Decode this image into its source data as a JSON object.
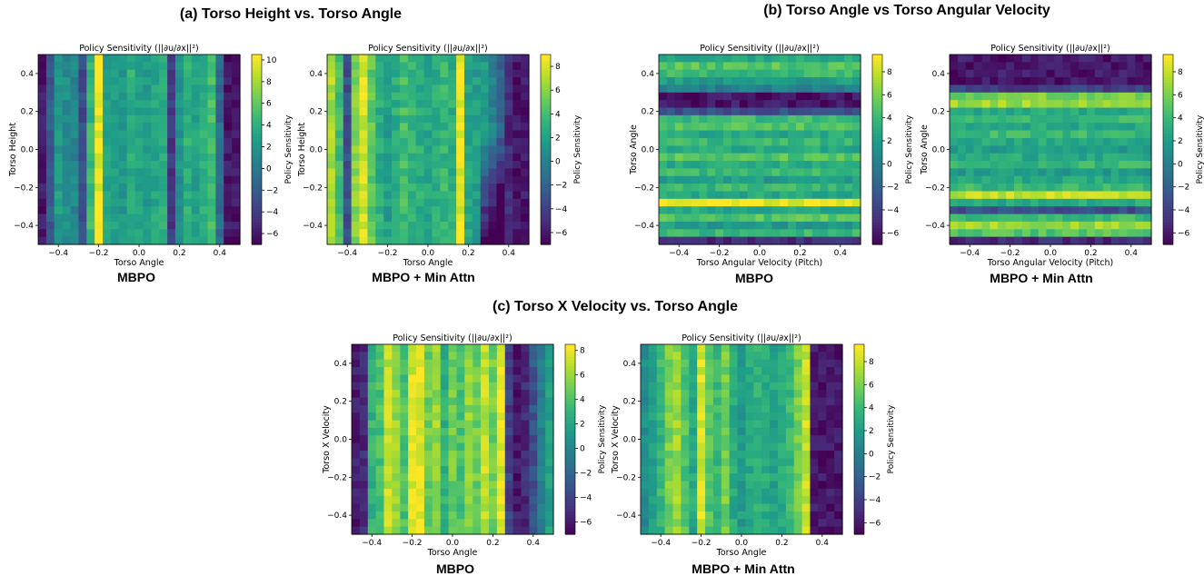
{
  "sections": [
    {
      "id": "a",
      "title": "(a) Torso Height vs. Torso Angle"
    },
    {
      "id": "b",
      "title": "(b) Torso Angle vs Torso Angular Velocity"
    },
    {
      "id": "c",
      "title": "(c) Torso X Velocity vs. Torso Angle"
    }
  ],
  "panel_labels": [
    "MBPO",
    "MBPO + Min Attn",
    "MBPO",
    "MBPO + Min Attn",
    "MBPO",
    "MBPO + Min Attn"
  ],
  "colors": {
    "viridis": [
      "#440154",
      "#482878",
      "#3e4989",
      "#31688e",
      "#26828e",
      "#1f9e89",
      "#35b779",
      "#6ece58",
      "#b5de2b",
      "#fde725"
    ]
  },
  "chart_data": [
    {
      "type": "heatmap",
      "title": "Policy Sensitivity (||∂u/∂x||²)",
      "xlabel": "Torso Angle",
      "ylabel": "Torso Height",
      "colorbar_label": "Policy Sensitivity",
      "xlim": [
        -0.5,
        0.5
      ],
      "ylim": [
        -0.5,
        0.5
      ],
      "xticks": [
        -0.4,
        -0.2,
        0.0,
        0.2,
        0.4
      ],
      "xtick_labels": [
        "−0.4",
        "−0.2",
        "0.0",
        "0.2",
        "0.4"
      ],
      "yticks": [
        -0.4,
        -0.2,
        0.0,
        0.2,
        0.4
      ],
      "ytick_labels": [
        "−0.4",
        "−0.2",
        "0.0",
        "0.2",
        "0.4"
      ],
      "cbar_range": [
        -7,
        10.5
      ],
      "cbar_ticks": [
        10,
        8,
        6,
        4,
        2,
        0,
        -2,
        -4,
        -6
      ],
      "cbar_tick_labels": [
        "10",
        "8",
        "6",
        "4",
        "2",
        "0",
        "−2",
        "−4",
        "−6"
      ],
      "orientation": "columns",
      "grid_n": 25,
      "profile": [
        -6,
        -2,
        2.5,
        1.5,
        1,
        -3,
        4.5,
        10,
        3,
        3,
        2,
        4,
        3,
        2.5,
        3.5,
        4,
        -4,
        2,
        4,
        3,
        4,
        5,
        -1,
        -6,
        -6
      ],
      "seed": 11,
      "note": "strong vertical stripe near x=-0.25"
    },
    {
      "type": "heatmap",
      "title": "Policy Sensitivity (||∂u/∂x||²)",
      "xlabel": "Torso Angle",
      "ylabel": "Torso Height",
      "colorbar_label": "Policy Sensitivity",
      "xlim": [
        -0.5,
        0.5
      ],
      "ylim": [
        -0.5,
        0.5
      ],
      "xticks": [
        -0.4,
        -0.2,
        0.0,
        0.2,
        0.4
      ],
      "xtick_labels": [
        "−0.4",
        "−0.2",
        "0.0",
        "0.2",
        "0.4"
      ],
      "yticks": [
        -0.4,
        -0.2,
        0.0,
        0.2,
        0.4
      ],
      "ytick_labels": [
        "−0.4",
        "−0.2",
        "0.0",
        "0.2",
        "0.4"
      ],
      "cbar_range": [
        -7,
        9
      ],
      "cbar_ticks": [
        8,
        6,
        4,
        2,
        0,
        -2,
        -4,
        -6
      ],
      "cbar_tick_labels": [
        "8",
        "6",
        "4",
        "2",
        "0",
        "−2",
        "−4",
        "−6"
      ],
      "orientation": "columns",
      "grid_n": 25,
      "profile": [
        7,
        4,
        -3,
        6,
        8,
        5,
        3,
        2,
        3,
        4,
        3.5,
        3,
        2.5,
        3,
        3.5,
        3,
        8.5,
        2.5,
        2,
        1.5,
        0,
        -2,
        -5,
        -6,
        -6
      ],
      "seed": 23,
      "note": "dark wedge at right side"
    },
    {
      "type": "heatmap",
      "title": "Policy Sensitivity (||∂u/∂x||²)",
      "xlabel": "Torso Angular Velocity (Pitch)",
      "ylabel": "Torso Angle",
      "colorbar_label": "Policy Sensitivity",
      "xlim": [
        -0.5,
        0.5
      ],
      "ylim": [
        -0.5,
        0.5
      ],
      "xticks": [
        -0.4,
        -0.2,
        0.0,
        0.2,
        0.4
      ],
      "xtick_labels": [
        "−0.4",
        "−0.2",
        "0.0",
        "0.2",
        "0.4"
      ],
      "yticks": [
        -0.4,
        -0.2,
        0.0,
        0.2,
        0.4
      ],
      "ytick_labels": [
        "−0.4",
        "−0.2",
        "0.0",
        "0.2",
        "0.4"
      ],
      "cbar_range": [
        -7,
        9.5
      ],
      "cbar_ticks": [
        8,
        6,
        4,
        2,
        0,
        -2,
        -4,
        -6
      ],
      "cbar_tick_labels": [
        "8",
        "6",
        "4",
        "2",
        "0",
        "−2",
        "−4",
        "−6"
      ],
      "orientation": "rows",
      "grid_n": 25,
      "profile": [
        3,
        5,
        4,
        2,
        0,
        -6,
        -6,
        -3,
        4,
        5,
        3,
        4,
        3,
        5,
        3,
        4,
        2,
        4,
        3,
        9,
        3,
        5,
        2,
        4,
        -5
      ],
      "seed": 37,
      "note": "bright horizontal band near y=-0.25"
    },
    {
      "type": "heatmap",
      "title": "Policy Sensitivity (||∂u/∂x||²)",
      "xlabel": "Torso Angular Velocity (Pitch)",
      "ylabel": "Torso Angle",
      "colorbar_label": "Policy Sensitivity",
      "xlim": [
        -0.5,
        0.5
      ],
      "ylim": [
        -0.5,
        0.5
      ],
      "xticks": [
        -0.4,
        -0.2,
        0.0,
        0.2,
        0.4
      ],
      "xtick_labels": [
        "−0.4",
        "−0.2",
        "0.0",
        "0.2",
        "0.4"
      ],
      "yticks": [
        -0.4,
        -0.2,
        0.0,
        0.2,
        0.4
      ],
      "ytick_labels": [
        "−0.4",
        "−0.2",
        "0.0",
        "0.2",
        "0.4"
      ],
      "cbar_range": [
        -7,
        9.5
      ],
      "cbar_ticks": [
        8,
        6,
        4,
        2,
        0,
        -2,
        -4,
        -6
      ],
      "cbar_tick_labels": [
        "8",
        "6",
        "4",
        "2",
        "0",
        "−2",
        "−4",
        "−6"
      ],
      "orientation": "rows",
      "grid_n": 25,
      "profile": [
        -6,
        -6,
        -6,
        -6,
        -4,
        6,
        7,
        3,
        4,
        3,
        4,
        3,
        2,
        3,
        4,
        2,
        3,
        4,
        8,
        3,
        -3,
        4,
        7,
        5,
        -5
      ],
      "seed": 41,
      "note": "dark band at top"
    },
    {
      "type": "heatmap",
      "title": "Policy Sensitivity (||∂u/∂x||²)",
      "xlabel": "Torso Angle",
      "ylabel": "Torso X Velocity",
      "colorbar_label": "Policy Sensitivity",
      "xlim": [
        -0.5,
        0.5
      ],
      "ylim": [
        -0.5,
        0.5
      ],
      "xticks": [
        -0.4,
        -0.2,
        0.0,
        0.2,
        0.4
      ],
      "xtick_labels": [
        "−0.4",
        "−0.2",
        "0.0",
        "0.2",
        "0.4"
      ],
      "yticks": [
        -0.4,
        -0.2,
        0.0,
        0.2,
        0.4
      ],
      "ytick_labels": [
        "−0.4",
        "−0.2",
        "0.0",
        "0.2",
        "0.4"
      ],
      "cbar_range": [
        -7,
        8.5
      ],
      "cbar_ticks": [
        8,
        6,
        4,
        2,
        0,
        -2,
        -4,
        -6
      ],
      "cbar_tick_labels": [
        "8",
        "6",
        "4",
        "2",
        "0",
        "−2",
        "−4",
        "−6"
      ],
      "orientation": "columns",
      "grid_n": 25,
      "profile": [
        -6,
        -5,
        3,
        4,
        7,
        6,
        4,
        7.5,
        8,
        5,
        6,
        3,
        5,
        4,
        6,
        5,
        7,
        5,
        8,
        -4,
        -6,
        -5,
        -3,
        0,
        2
      ],
      "seed": 53,
      "note": "dark stripe near x=0.3"
    },
    {
      "type": "heatmap",
      "title": "Policy Sensitivity (||∂u/∂x||²)",
      "xlabel": "Torso Angle",
      "ylabel": "Torso X Velocity",
      "colorbar_label": "Policy Sensitivity",
      "xlim": [
        -0.5,
        0.5
      ],
      "ylim": [
        -0.5,
        0.5
      ],
      "xticks": [
        -0.4,
        -0.2,
        0.0,
        0.2,
        0.4
      ],
      "xtick_labels": [
        "−0.4",
        "−0.2",
        "0.0",
        "0.2",
        "0.4"
      ],
      "yticks": [
        -0.4,
        -0.2,
        0.0,
        0.2,
        0.4
      ],
      "ytick_labels": [
        "−0.4",
        "−0.2",
        "0.0",
        "0.2",
        "0.4"
      ],
      "cbar_range": [
        -7,
        9.5
      ],
      "cbar_ticks": [
        8,
        6,
        4,
        2,
        0,
        -2,
        -4,
        -6
      ],
      "cbar_tick_labels": [
        "8",
        "6",
        "4",
        "2",
        "0",
        "−2",
        "−4",
        "−6"
      ],
      "orientation": "columns",
      "grid_n": 25,
      "profile": [
        1,
        2,
        4,
        6,
        7,
        5,
        3,
        8.5,
        5,
        4,
        6,
        3,
        2,
        3,
        3.5,
        3,
        2.5,
        3,
        4,
        6,
        8,
        -6,
        -6,
        -6,
        -6
      ],
      "seed": 61,
      "note": "dark right region from x=0.28"
    }
  ]
}
